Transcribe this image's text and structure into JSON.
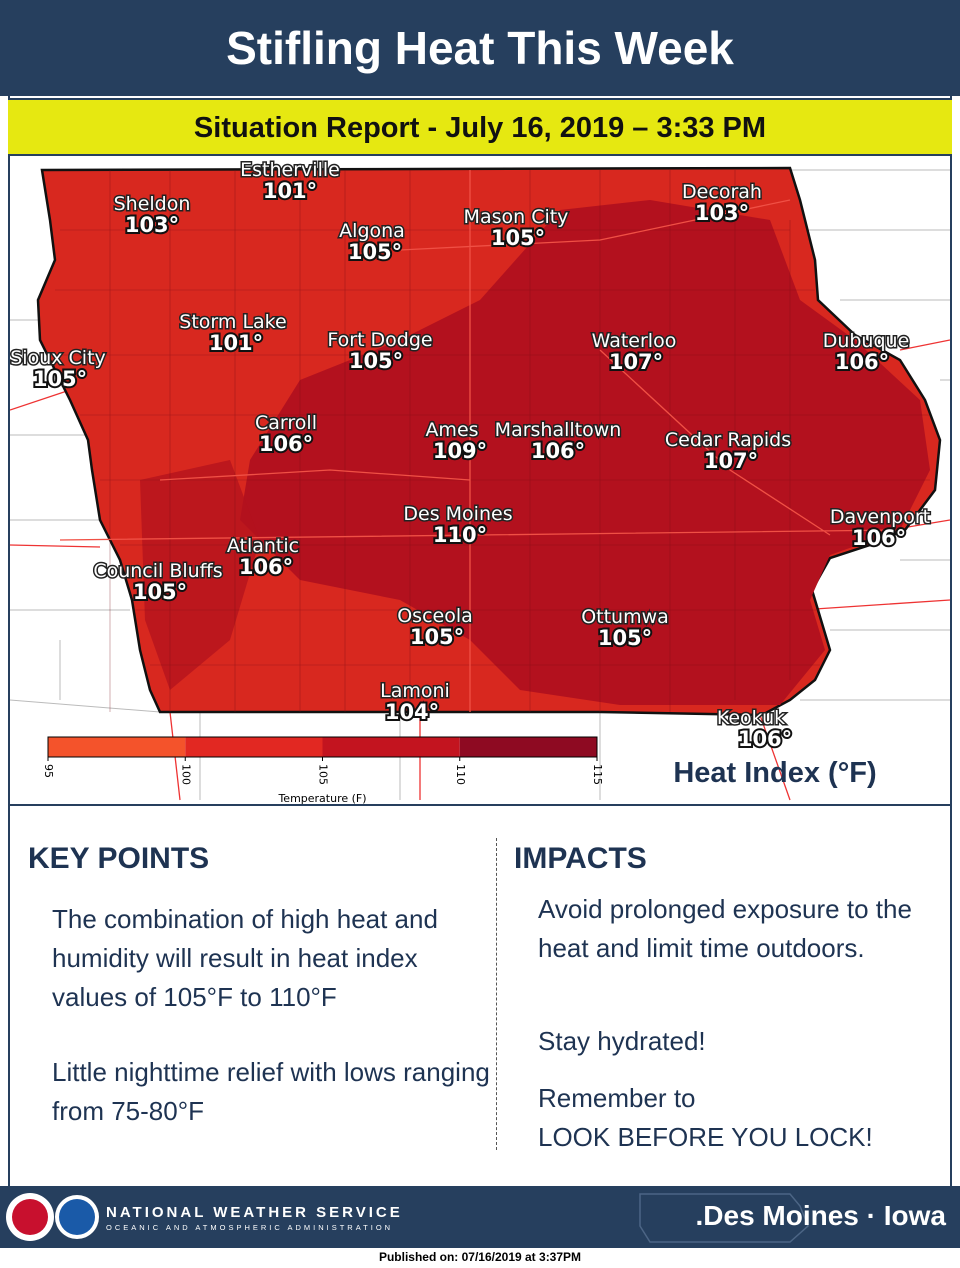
{
  "header": {
    "title": "Stifling Heat This Week",
    "subtitle": "Situation Report - July 16, 2019 – 3:33 PM"
  },
  "map": {
    "cities": [
      {
        "name": "Estherville",
        "value": "101°"
      },
      {
        "name": "Sheldon",
        "value": "103°"
      },
      {
        "name": "Algona",
        "value": "105°"
      },
      {
        "name": "Mason City",
        "value": "105°"
      },
      {
        "name": "Decorah",
        "value": "103°"
      },
      {
        "name": "Storm Lake",
        "value": "101°"
      },
      {
        "name": "Fort Dodge",
        "value": "105°"
      },
      {
        "name": "Sioux City",
        "value": "105°"
      },
      {
        "name": "Waterloo",
        "value": "107°"
      },
      {
        "name": "Dubuque",
        "value": "106°"
      },
      {
        "name": "Carroll",
        "value": "106°"
      },
      {
        "name": "Ames",
        "value": "109°"
      },
      {
        "name": "Marshalltown",
        "value": "106°"
      },
      {
        "name": "Cedar Rapids",
        "value": "107°"
      },
      {
        "name": "Des Moines",
        "value": "110°"
      },
      {
        "name": "Davenport",
        "value": "106°"
      },
      {
        "name": "Atlantic",
        "value": "106°"
      },
      {
        "name": "Council Bluffs",
        "value": "105°"
      },
      {
        "name": "Osceola",
        "value": "105°"
      },
      {
        "name": "Ottumwa",
        "value": "105°"
      },
      {
        "name": "Lamoni",
        "value": "104°"
      },
      {
        "name": "Keokuk",
        "value": "106°"
      }
    ],
    "legend": {
      "ticks": [
        95,
        100,
        105,
        110,
        115
      ],
      "colors": [
        "#f4532b",
        "#e22822",
        "#c3141f",
        "#8e0a22"
      ],
      "axis_label": "Temperature (F)",
      "title": "Heat Index (°F)"
    }
  },
  "key_points": {
    "heading": "KEY POINTS",
    "items": [
      "The combination of high heat and humidity will result in heat index values of 105°F to 110°F",
      "Little nighttime relief with lows ranging from 75-80°F"
    ]
  },
  "impacts": {
    "heading": "IMPACTS",
    "items": [
      "Avoid prolonged exposure to the heat and limit time outdoors.",
      "Stay hydrated!",
      "Remember to",
      "LOOK BEFORE YOU LOCK!"
    ]
  },
  "footer": {
    "agency": "NATIONAL WEATHER SERVICE",
    "department": "OCEANIC AND ATMOSPHERIC ADMINISTRATION",
    "office": ".Des Moines · Iowa",
    "published": "Published on: 07/16/2019 at 3:37PM"
  }
}
